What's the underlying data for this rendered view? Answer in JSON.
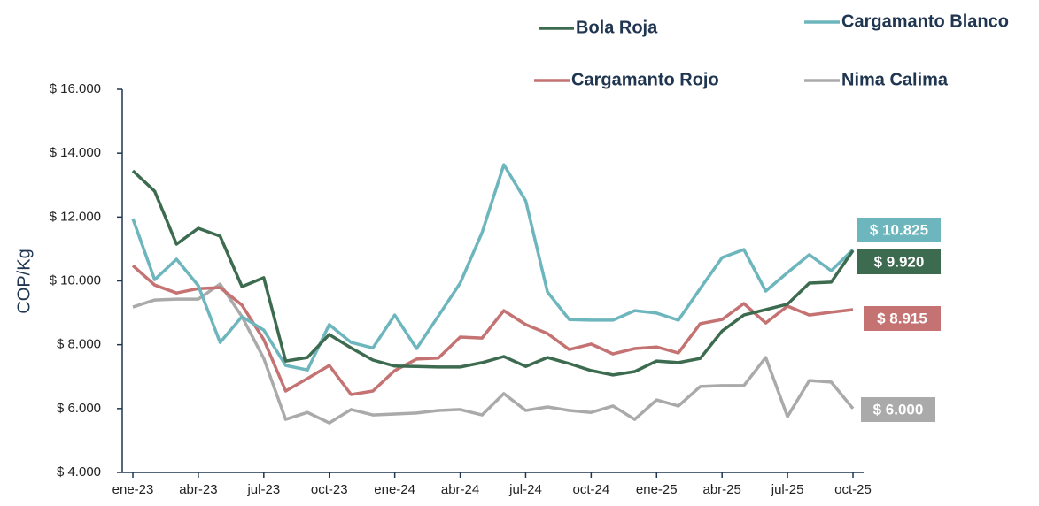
{
  "chart_data": {
    "type": "line",
    "y_label": "COP/Kg",
    "categories": [
      "ene-23",
      null,
      null,
      "abr-23",
      null,
      null,
      "jul-23",
      null,
      null,
      "oct-23",
      null,
      null,
      "ene-24",
      null,
      null,
      "abr-24",
      null,
      null,
      "jul-24",
      null,
      null,
      "oct-24",
      null,
      null,
      "ene-25",
      null,
      null,
      "abr-25",
      null,
      null,
      "jul-25",
      null,
      null,
      "oct-25"
    ],
    "series": [
      {
        "name": "Bola Roja",
        "color": "#3d6b4f",
        "values": [
          13450,
          12810,
          11150,
          11650,
          11400,
          9820,
          10100,
          7490,
          7600,
          8320,
          7900,
          7520,
          7330,
          7320,
          7300,
          7300,
          7440,
          7630,
          7320,
          7600,
          7410,
          7190,
          7050,
          7160,
          7490,
          7440,
          7570,
          8430,
          8930,
          9100,
          9270,
          9930,
          9960,
          10950
        ]
      },
      {
        "name": "Cargamanto Blanco",
        "color": "#6db6bd",
        "values": [
          11950,
          10040,
          10680,
          9850,
          8070,
          8880,
          8460,
          7350,
          7210,
          8630,
          8070,
          7900,
          8930,
          7880,
          8900,
          9930,
          11510,
          13640,
          12510,
          9650,
          8790,
          8770,
          8770,
          9070,
          8990,
          8770,
          9760,
          10730,
          10980,
          9680,
          10260,
          10820,
          10320,
          10980
        ]
      },
      {
        "name": "Cargamanto Rojo",
        "color": "#c47272",
        "values": [
          10480,
          9870,
          9620,
          9760,
          9790,
          9240,
          8160,
          6550,
          6940,
          7350,
          6440,
          6550,
          7190,
          7550,
          7580,
          8240,
          8210,
          9070,
          8630,
          8350,
          7850,
          8020,
          7710,
          7880,
          7930,
          7740,
          8660,
          8790,
          9290,
          8680,
          9210,
          8930,
          9020,
          9100
        ]
      },
      {
        "name": "Nima Calima",
        "color": "#aaaaaa",
        "values": [
          9180,
          9400,
          9430,
          9430,
          9900,
          8880,
          7570,
          5660,
          5880,
          5550,
          5970,
          5800,
          5830,
          5860,
          5940,
          5970,
          5800,
          6470,
          5940,
          6050,
          5940,
          5880,
          6080,
          5660,
          6270,
          6080,
          6690,
          6720,
          6720,
          7600,
          5750,
          6880,
          6830,
          6000
        ]
      }
    ],
    "annotations": [
      {
        "label": "$ 10.825",
        "color": "#6db6bd"
      },
      {
        "label": "$ 9.920",
        "color": "#3d6b4f"
      },
      {
        "label": "$ 8.915",
        "color": "#c47272"
      },
      {
        "label": "$ 6.000",
        "color": "#aaaaaa"
      }
    ],
    "ylim": [
      4000,
      16000
    ],
    "yticks": [
      {
        "value": 4000,
        "label": "$ 4.000"
      },
      {
        "value": 6000,
        "label": "$ 6.000"
      },
      {
        "value": 8000,
        "label": "$ 8.000"
      },
      {
        "value": 10000,
        "label": "$ 10.000"
      },
      {
        "value": 12000,
        "label": "$ 12.000"
      },
      {
        "value": 14000,
        "label": "$ 14.000"
      },
      {
        "value": 16000,
        "label": "$ 16.000"
      }
    ]
  }
}
